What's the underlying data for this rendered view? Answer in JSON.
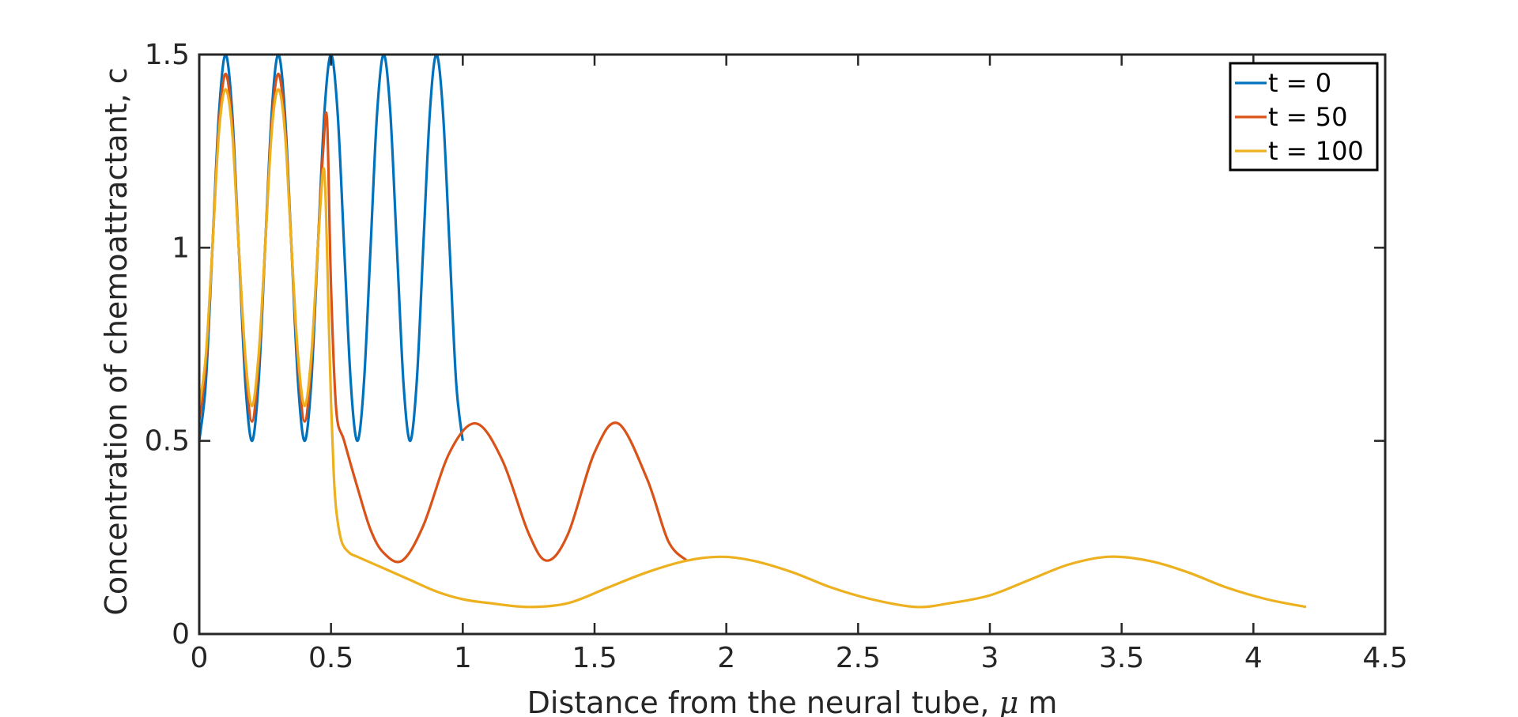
{
  "chart_data": {
    "type": "line",
    "xlabel_prefix": "Distance from the neural tube, ",
    "xlabel_symbol": "μ",
    "xlabel_suffix": " m",
    "ylabel": "Concentration  of chemoattractant, c",
    "xlim": [
      0,
      4.5
    ],
    "ylim": [
      0,
      1.5
    ],
    "xticks": [
      0,
      0.5,
      1,
      1.5,
      2,
      2.5,
      3,
      3.5,
      4,
      4.5
    ],
    "xtick_labels": [
      "0",
      "0.5",
      "1",
      "1.5",
      "2",
      "2.5",
      "3",
      "3.5",
      "4",
      "4.5"
    ],
    "yticks": [
      0,
      0.5,
      1,
      1.5
    ],
    "ytick_labels": [
      "0",
      "0.5",
      "1",
      "1.5"
    ],
    "grid": false,
    "legend_position": "top-right",
    "series": [
      {
        "name": "t = 0",
        "color": "#0072BD",
        "x": [
          0,
          0.025,
          0.05,
          0.075,
          0.1,
          0.125,
          0.15,
          0.175,
          0.2,
          0.225,
          0.25,
          0.275,
          0.3,
          0.325,
          0.35,
          0.375,
          0.4,
          0.425,
          0.45,
          0.475,
          0.5,
          0.525,
          0.55,
          0.575,
          0.6,
          0.625,
          0.65,
          0.675,
          0.7,
          0.725,
          0.75,
          0.775,
          0.8,
          0.825,
          0.85,
          0.875,
          0.9,
          0.925,
          0.95,
          0.975,
          1.0
        ],
        "y": [
          0.5,
          0.65,
          1.0,
          1.35,
          1.5,
          1.35,
          1.0,
          0.65,
          0.5,
          0.65,
          1.0,
          1.35,
          1.5,
          1.35,
          1.0,
          0.65,
          0.5,
          0.65,
          1.0,
          1.35,
          1.5,
          1.35,
          1.0,
          0.65,
          0.5,
          0.65,
          1.0,
          1.35,
          1.5,
          1.35,
          1.0,
          0.65,
          0.5,
          0.65,
          1.0,
          1.35,
          1.5,
          1.35,
          1.0,
          0.65,
          0.5
        ]
      },
      {
        "name": "t = 50",
        "color": "#D95319",
        "x": [
          0,
          0.025,
          0.05,
          0.075,
          0.1,
          0.125,
          0.15,
          0.175,
          0.2,
          0.225,
          0.25,
          0.275,
          0.3,
          0.325,
          0.35,
          0.375,
          0.4,
          0.425,
          0.45,
          0.47,
          0.485,
          0.5,
          0.52,
          0.55,
          0.6,
          0.65,
          0.7,
          0.77,
          0.85,
          0.95,
          1.05,
          1.15,
          1.25,
          1.32,
          1.4,
          1.5,
          1.59,
          1.7,
          1.78,
          1.85
        ],
        "y": [
          0.55,
          0.7,
          1.0,
          1.32,
          1.45,
          1.32,
          1.0,
          0.7,
          0.55,
          0.7,
          1.0,
          1.32,
          1.45,
          1.32,
          1.0,
          0.7,
          0.55,
          0.7,
          1.0,
          1.25,
          1.33,
          0.9,
          0.58,
          0.5,
          0.38,
          0.27,
          0.21,
          0.19,
          0.28,
          0.47,
          0.545,
          0.45,
          0.26,
          0.19,
          0.26,
          0.47,
          0.545,
          0.4,
          0.24,
          0.19
        ]
      },
      {
        "name": "t = 100",
        "color": "#EDB120",
        "x": [
          0,
          0.025,
          0.05,
          0.075,
          0.1,
          0.125,
          0.15,
          0.175,
          0.2,
          0.225,
          0.25,
          0.275,
          0.3,
          0.325,
          0.35,
          0.375,
          0.4,
          0.425,
          0.45,
          0.47,
          0.48,
          0.49,
          0.5,
          0.51,
          0.52,
          0.54,
          0.57,
          0.6,
          0.7,
          0.8,
          0.9,
          1.0,
          1.1,
          1.25,
          1.4,
          1.55,
          1.7,
          1.85,
          1.98,
          2.1,
          2.25,
          2.4,
          2.55,
          2.72,
          2.85,
          3.0,
          3.15,
          3.3,
          3.45,
          3.6,
          3.75,
          3.9,
          4.05,
          4.2
        ],
        "y": [
          0.59,
          0.72,
          1.0,
          1.3,
          1.41,
          1.3,
          1.0,
          0.72,
          0.59,
          0.72,
          1.0,
          1.3,
          1.41,
          1.3,
          1.0,
          0.72,
          0.59,
          0.72,
          1.0,
          1.2,
          1.12,
          0.85,
          0.6,
          0.42,
          0.32,
          0.24,
          0.21,
          0.2,
          0.17,
          0.14,
          0.11,
          0.09,
          0.08,
          0.07,
          0.08,
          0.12,
          0.16,
          0.19,
          0.2,
          0.19,
          0.16,
          0.12,
          0.09,
          0.07,
          0.08,
          0.1,
          0.14,
          0.18,
          0.2,
          0.19,
          0.16,
          0.12,
          0.09,
          0.07
        ]
      }
    ]
  }
}
